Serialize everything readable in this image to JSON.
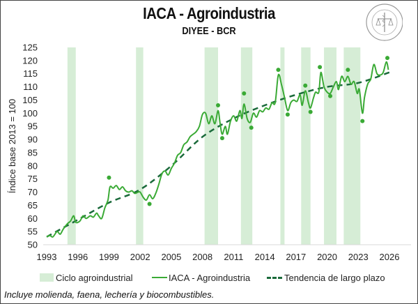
{
  "header": {
    "title": "IACA - Agroindustria",
    "subtitle": "DIYEE - BCR",
    "logo_text": "BOLSA DE COMERCIO DE ROSARIO"
  },
  "footnote": "Incluye molienda, faena, lechería y biocombustibles.",
  "colors": {
    "band": "#d6edd6",
    "series": "#3aaa35",
    "trend": "#1a6a3a",
    "dots": "#3aaa35"
  },
  "chart_data": {
    "type": "line",
    "title": "IACA - Agroindustria",
    "subtitle": "DIYEE - BCR",
    "xlabel": "",
    "ylabel": "Índice base 2013 = 100",
    "xlim": [
      1993,
      2026
    ],
    "ylim": [
      50,
      125
    ],
    "x_ticks": [
      "1993",
      "1996",
      "1999",
      "2002",
      "2005",
      "2008",
      "2011",
      "2014",
      "2017",
      "2020",
      "2023",
      "2026"
    ],
    "y_ticks": [
      "50",
      "55",
      "60",
      "65",
      "70",
      "75",
      "80",
      "85",
      "90",
      "95",
      "100",
      "105",
      "110",
      "115",
      "120",
      "125"
    ],
    "grid": false,
    "legend_position": "bottom",
    "legend": [
      "Ciclo agroindustrial",
      "IACA - Agroindustria",
      "Tendencia de largo plazo"
    ],
    "cycle_bands": [
      [
        1995.0,
        1995.8
      ],
      [
        2001.6,
        2002.3
      ],
      [
        2008.2,
        2009.5
      ],
      [
        2011.7,
        2012.8
      ],
      [
        2015.5,
        2015.9
      ],
      [
        2017.5,
        2018.4
      ],
      [
        2019.7,
        2020.9
      ],
      [
        2021.6,
        2023.2
      ]
    ],
    "series": [
      {
        "name": "IACA - Agroindustria",
        "x": [
          1993.0,
          1993.3,
          1993.6,
          1994.0,
          1994.3,
          1994.6,
          1995.0,
          1995.3,
          1995.6,
          1995.8,
          1996.2,
          1996.5,
          1996.8,
          1997.2,
          1997.5,
          1997.8,
          1998.0,
          1998.3,
          1998.6,
          1998.9,
          1999.1,
          1999.4,
          1999.7,
          2000.0,
          2000.3,
          2000.6,
          2000.9,
          2001.2,
          2001.5,
          2001.8,
          2002.0,
          2002.3,
          2002.6,
          2002.9,
          2003.2,
          2003.5,
          2003.8,
          2004.1,
          2004.4,
          2004.7,
          2005.0,
          2005.3,
          2005.6,
          2005.9,
          2006.2,
          2006.5,
          2006.8,
          2007.1,
          2007.4,
          2007.7,
          2008.0,
          2008.3,
          2008.6,
          2008.9,
          2009.2,
          2009.5,
          2009.7,
          2009.9,
          2010.2,
          2010.4,
          2010.7,
          2011.0,
          2011.3,
          2011.6,
          2011.8,
          2012.0,
          2012.3,
          2012.6,
          2012.9,
          2013.2,
          2013.5,
          2013.8,
          2014.1,
          2014.4,
          2014.7,
          2015.0,
          2015.3,
          2015.6,
          2015.9,
          2016.2,
          2016.5,
          2016.8,
          2017.1,
          2017.4,
          2017.6,
          2017.9,
          2018.2,
          2018.4,
          2018.7,
          2018.9,
          2019.2,
          2019.4,
          2019.7,
          2020.0,
          2020.3,
          2020.6,
          2020.9,
          2021.1,
          2021.4,
          2021.7,
          2022.0,
          2022.3,
          2022.6,
          2022.9,
          2023.1,
          2023.4,
          2023.6,
          2023.9,
          2024.2,
          2024.5,
          2024.8,
          2025.1,
          2025.4,
          2025.7,
          2025.9
        ],
        "values": [
          53,
          53.5,
          53,
          55,
          54,
          56,
          58,
          59,
          61,
          58.5,
          59,
          61,
          60,
          61,
          60.5,
          62,
          61,
          60,
          64,
          67,
          72,
          71.5,
          72.5,
          71,
          72,
          70.5,
          70,
          70.5,
          69.5,
          70,
          70,
          68,
          67,
          69,
          67.5,
          69.5,
          73,
          77,
          78,
          76.5,
          79,
          81,
          84,
          85,
          88,
          89,
          91,
          92,
          93,
          95,
          99.5,
          100,
          96,
          99,
          96,
          101,
          96,
          92,
          95,
          92,
          97,
          99,
          97,
          101,
          98,
          103.5,
          98,
          96.5,
          100,
          98.5,
          101,
          100.5,
          102,
          101.5,
          104,
          104,
          114.5,
          111,
          106,
          101,
          104,
          105,
          104.5,
          107,
          103,
          108.5,
          104,
          102,
          106,
          108,
          108,
          115.5,
          110,
          108,
          107.5,
          110,
          112,
          109,
          114,
          112,
          114,
          111,
          112,
          107.5,
          109,
          100,
          106,
          111,
          113,
          118.5,
          115,
          114.5,
          115.5,
          119.5,
          116.5
        ]
      },
      {
        "name": "Tendencia de largo plazo",
        "x": [
          1993,
          1996,
          1999,
          2002,
          2005,
          2008,
          2011,
          2014,
          2017,
          2020,
          2023,
          2026
        ],
        "values": [
          53,
          59.5,
          66,
          71,
          80,
          91,
          98,
          103,
          107,
          110,
          111.5,
          115.5
        ]
      }
    ],
    "cycle_points": {
      "x": [
        1999.0,
        2002.9,
        2009.5,
        2009.9,
        2012.0,
        2012.7,
        2015.3,
        2016.2,
        2017.9,
        2018.4,
        2019.3,
        2020.3,
        2022.0,
        2023.4,
        2025.8
      ],
      "values": [
        75.5,
        65.5,
        103,
        90.5,
        107.5,
        94.5,
        116.5,
        99.5,
        110.5,
        100.5,
        117.5,
        106.5,
        116.5,
        97,
        121
      ]
    }
  }
}
